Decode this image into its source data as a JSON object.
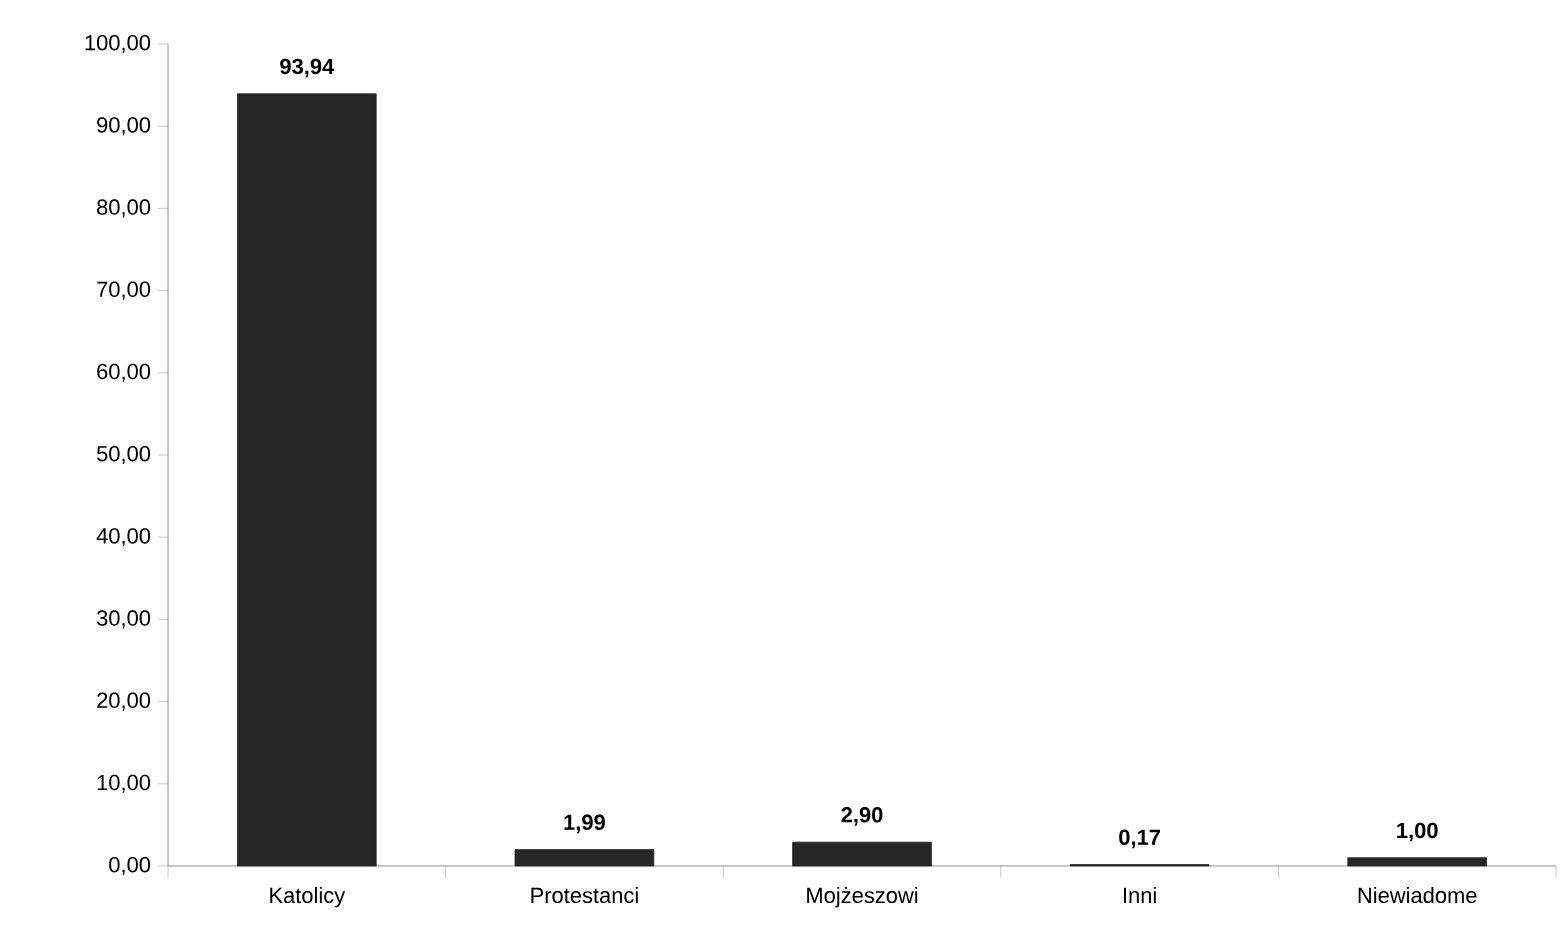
{
  "chart_data": {
    "type": "bar",
    "categories": [
      "Katolicy",
      "Protestanci",
      "Mojżeszowi",
      "Inni",
      "Niewiadome"
    ],
    "values": [
      93.94,
      1.99,
      2.9,
      0.17,
      1.0
    ],
    "value_labels": [
      "93,94",
      "1,99",
      "2,90",
      "0,17",
      "1,00"
    ],
    "color": "#262626",
    "ylim": [
      0,
      100
    ],
    "yticks": [
      {
        "value": 0,
        "label": "0,00"
      },
      {
        "value": 10,
        "label": "10,00"
      },
      {
        "value": 20,
        "label": "20,00"
      },
      {
        "value": 30,
        "label": "30,00"
      },
      {
        "value": 40,
        "label": "40,00"
      },
      {
        "value": 50,
        "label": "50,00"
      },
      {
        "value": 60,
        "label": "60,00"
      },
      {
        "value": 70,
        "label": "70,00"
      },
      {
        "value": 80,
        "label": "80,00"
      },
      {
        "value": 90,
        "label": "90,00"
      },
      {
        "value": 100,
        "label": "100,00"
      }
    ],
    "grid": false
  }
}
